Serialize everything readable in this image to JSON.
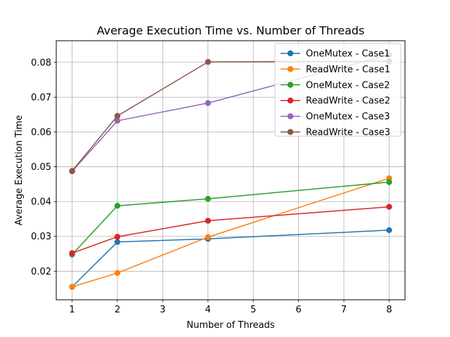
{
  "chart_data": {
    "type": "line",
    "title": "Average Execution Time vs. Number of Threads",
    "xlabel": "Number of Threads",
    "ylabel": "Average Execution Time",
    "x": [
      1,
      2,
      4,
      8
    ],
    "xlim": [
      0.65,
      8.35
    ],
    "ylim": [
      0.0118,
      0.0862
    ],
    "xticks": [
      "1",
      "2",
      "3",
      "4",
      "5",
      "6",
      "7",
      "8"
    ],
    "yticks": [
      "0.02",
      "0.03",
      "0.04",
      "0.05",
      "0.06",
      "0.07",
      "0.08"
    ],
    "grid": true,
    "legend_position": "top-right",
    "series": [
      {
        "name": "OneMutex - Case1",
        "color": "#1f77b4",
        "values": [
          0.0155,
          0.0284,
          0.0293,
          0.0318
        ]
      },
      {
        "name": "ReadWrite - Case1",
        "color": "#ff7f0e",
        "values": [
          0.0155,
          0.0195,
          0.0298,
          0.0467
        ]
      },
      {
        "name": "OneMutex - Case2",
        "color": "#2ca02c",
        "values": [
          0.0248,
          0.0388,
          0.0408,
          0.0456
        ]
      },
      {
        "name": "ReadWrite - Case2",
        "color": "#d62728",
        "values": [
          0.0252,
          0.0299,
          0.0345,
          0.0385
        ]
      },
      {
        "name": "OneMutex - Case3",
        "color": "#9467bd",
        "values": [
          0.0487,
          0.0632,
          0.0683,
          0.0822
        ]
      },
      {
        "name": "ReadWrite - Case3",
        "color": "#8c564b",
        "values": [
          0.0488,
          0.0646,
          0.0801,
          0.0803
        ]
      }
    ]
  }
}
